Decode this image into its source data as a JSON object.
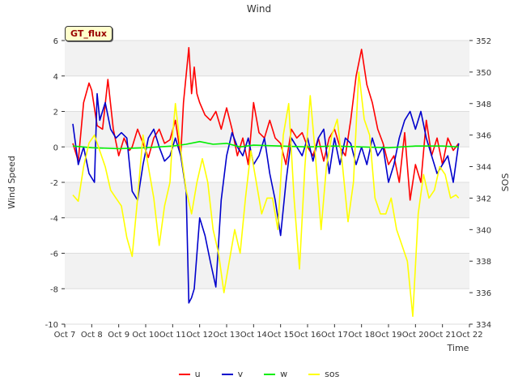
{
  "chart_data": {
    "type": "line",
    "title": "Wind",
    "badge": "GT_flux",
    "xlabel": "Time",
    "ylabel_left": "Wind Speed",
    "ylabel_right": "SOS",
    "ylim_left": [
      -10,
      6
    ],
    "ylim_right": [
      334,
      352
    ],
    "xlim": [
      0,
      15
    ],
    "x_ticks": [
      0,
      1,
      2,
      3,
      4,
      5,
      6,
      7,
      8,
      9,
      10,
      11,
      12,
      13,
      14,
      15
    ],
    "x_tick_labels": [
      "Oct 7",
      "Oct 8",
      "Oct 9",
      "Oct 10",
      "Oct 11",
      "Oct 12",
      "Oct 13",
      "Oct 14",
      "Oct 15",
      "Oct 16",
      "Oct 17",
      "Oct 18",
      "Oct 19",
      "Oct 20",
      "Oct 21",
      "Oct 22"
    ],
    "y_left_ticks": [
      -10,
      -8,
      -6,
      -4,
      -2,
      0,
      2,
      4,
      6
    ],
    "y_right_ticks": [
      334,
      336,
      338,
      340,
      342,
      344,
      346,
      348,
      350,
      352
    ],
    "series": [
      {
        "name": "u",
        "axis": "left",
        "color": "#ff0000",
        "x": [
          0.3,
          0.5,
          0.7,
          0.9,
          1.0,
          1.2,
          1.4,
          1.6,
          1.8,
          2.0,
          2.2,
          2.4,
          2.5,
          2.7,
          2.9,
          3.1,
          3.3,
          3.5,
          3.7,
          3.9,
          4.1,
          4.3,
          4.4,
          4.6,
          4.7,
          4.8,
          4.9,
          5.0,
          5.2,
          5.4,
          5.6,
          5.8,
          6.0,
          6.2,
          6.4,
          6.6,
          6.8,
          7.0,
          7.2,
          7.4,
          7.6,
          7.8,
          8.0,
          8.2,
          8.4,
          8.6,
          8.8,
          9.0,
          9.2,
          9.4,
          9.6,
          9.8,
          10.0,
          10.2,
          10.4,
          10.6,
          10.8,
          11.0,
          11.2,
          11.4,
          11.6,
          11.8,
          12.0,
          12.2,
          12.4,
          12.6,
          12.8,
          13.0,
          13.2,
          13.4,
          13.6,
          13.8,
          14.0,
          14.2,
          14.4,
          14.6
        ],
        "values": [
          0.2,
          -0.8,
          2.5,
          3.6,
          3.2,
          1.2,
          1.0,
          3.8,
          1.0,
          -0.5,
          0.5,
          -0.2,
          0.0,
          1.0,
          0.2,
          -0.6,
          0.5,
          1.0,
          0.2,
          0.4,
          1.5,
          -0.5,
          2.5,
          5.6,
          3.0,
          4.5,
          3.0,
          2.5,
          1.8,
          1.5,
          2.0,
          1.0,
          2.2,
          1.0,
          -0.5,
          0.5,
          -1.0,
          2.5,
          0.8,
          0.5,
          1.5,
          0.5,
          0.2,
          -1.0,
          1.0,
          0.5,
          0.8,
          0.0,
          -0.5,
          0.5,
          -0.8,
          0.5,
          1.0,
          0.0,
          -0.5,
          1.5,
          4.0,
          5.5,
          3.5,
          2.5,
          1.0,
          0.2,
          -1.0,
          -0.5,
          -2.0,
          0.8,
          -3.0,
          -1.0,
          -2.0,
          1.5,
          -0.5,
          0.5,
          -1.0,
          0.5,
          -0.2,
          0.2
        ]
      },
      {
        "name": "v",
        "axis": "left",
        "color": "#0000cc",
        "x": [
          0.3,
          0.5,
          0.7,
          0.9,
          1.1,
          1.2,
          1.3,
          1.5,
          1.7,
          1.9,
          2.1,
          2.3,
          2.5,
          2.7,
          2.9,
          3.1,
          3.3,
          3.5,
          3.7,
          3.9,
          4.1,
          4.3,
          4.5,
          4.6,
          4.7,
          4.8,
          5.0,
          5.2,
          5.4,
          5.6,
          5.8,
          6.0,
          6.2,
          6.4,
          6.6,
          6.8,
          7.0,
          7.2,
          7.4,
          7.6,
          7.8,
          8.0,
          8.2,
          8.4,
          8.6,
          8.8,
          9.0,
          9.2,
          9.4,
          9.6,
          9.8,
          10.0,
          10.2,
          10.4,
          10.6,
          10.8,
          11.0,
          11.2,
          11.4,
          11.6,
          11.8,
          12.0,
          12.2,
          12.4,
          12.6,
          12.8,
          13.0,
          13.2,
          13.4,
          13.6,
          13.8,
          14.0,
          14.2,
          14.4,
          14.6
        ],
        "values": [
          1.3,
          -1.0,
          0.0,
          -1.5,
          -2.0,
          3.0,
          1.5,
          2.5,
          1.0,
          0.5,
          0.8,
          0.5,
          -2.5,
          -3.0,
          -1.0,
          0.5,
          1.0,
          0.0,
          -0.8,
          -0.5,
          0.5,
          -0.5,
          -2.5,
          -8.8,
          -8.5,
          -8.0,
          -4.0,
          -5.0,
          -6.5,
          -7.9,
          -3.0,
          -0.5,
          0.8,
          0.0,
          -0.5,
          0.5,
          -1.0,
          -0.5,
          0.5,
          -1.5,
          -3.0,
          -5.0,
          -2.0,
          0.5,
          0.0,
          -0.5,
          0.5,
          -0.8,
          0.5,
          1.0,
          -1.5,
          0.5,
          -1.0,
          0.5,
          0.2,
          -1.0,
          0.0,
          -1.0,
          0.5,
          -0.5,
          0.0,
          -2.0,
          -1.0,
          0.5,
          1.5,
          2.0,
          1.0,
          2.0,
          0.5,
          -0.5,
          -1.5,
          -1.0,
          -0.5,
          -2.0,
          0.2
        ]
      },
      {
        "name": "w",
        "axis": "left",
        "color": "#00ee00",
        "x": [
          0.3,
          1.0,
          2.0,
          3.0,
          4.0,
          4.5,
          5.0,
          5.5,
          6.0,
          6.5,
          7.0,
          8.0,
          9.0,
          10.0,
          11.0,
          12.0,
          13.0,
          14.0,
          14.6
        ],
        "values": [
          0.05,
          -0.05,
          -0.1,
          -0.05,
          0.05,
          0.15,
          0.3,
          0.15,
          0.2,
          0.0,
          0.1,
          0.05,
          0.0,
          0.05,
          0.0,
          -0.05,
          0.05,
          0.05,
          0.0
        ]
      },
      {
        "name": "sos",
        "axis": "right",
        "color": "#ffff00",
        "x": [
          0.3,
          0.5,
          0.7,
          0.9,
          1.1,
          1.3,
          1.5,
          1.7,
          1.9,
          2.1,
          2.3,
          2.5,
          2.7,
          2.9,
          3.1,
          3.3,
          3.5,
          3.7,
          3.9,
          4.0,
          4.1,
          4.3,
          4.5,
          4.7,
          4.9,
          5.1,
          5.3,
          5.5,
          5.7,
          5.9,
          6.1,
          6.3,
          6.5,
          6.7,
          6.9,
          7.1,
          7.3,
          7.5,
          7.7,
          7.9,
          8.1,
          8.3,
          8.5,
          8.7,
          8.9,
          9.1,
          9.3,
          9.5,
          9.7,
          9.9,
          10.1,
          10.3,
          10.5,
          10.7,
          10.9,
          11.1,
          11.3,
          11.5,
          11.7,
          11.9,
          12.1,
          12.3,
          12.5,
          12.7,
          12.9,
          13.1,
          13.3,
          13.5,
          13.7,
          13.9,
          14.1,
          14.3,
          14.5,
          14.6
        ],
        "values": [
          342.2,
          341.8,
          344.0,
          345.5,
          346.0,
          345.0,
          344.0,
          342.5,
          342.0,
          341.5,
          339.5,
          338.3,
          342.0,
          346.0,
          344.0,
          342.0,
          339.0,
          341.5,
          343.0,
          346.0,
          348.0,
          345.0,
          342.5,
          341.0,
          343.0,
          344.5,
          343.0,
          340.0,
          338.5,
          336.0,
          338.0,
          340.0,
          338.5,
          342.0,
          345.0,
          343.0,
          341.0,
          342.0,
          342.0,
          340.0,
          346.0,
          348.0,
          342.0,
          337.5,
          344.0,
          348.5,
          344.5,
          340.0,
          344.0,
          346.0,
          347.0,
          344.0,
          340.5,
          343.0,
          350.0,
          347.0,
          346.0,
          342.0,
          341.0,
          341.0,
          342.0,
          340.0,
          339.0,
          338.0,
          334.5,
          341.0,
          343.5,
          342.0,
          342.5,
          344.0,
          343.5,
          342.0,
          342.2,
          342.0
        ]
      }
    ]
  }
}
